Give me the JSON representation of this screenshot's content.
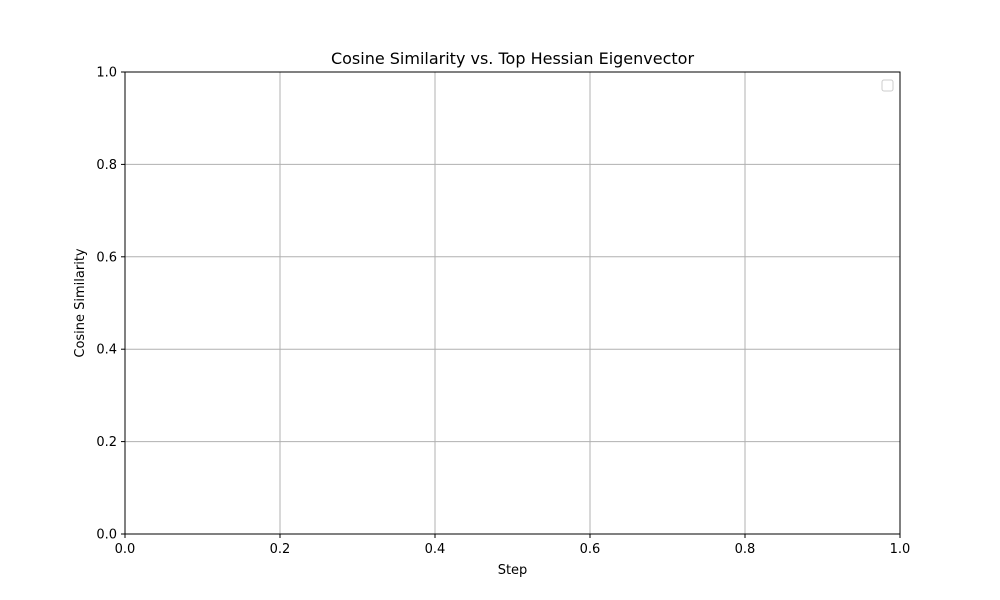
{
  "chart_data": {
    "type": "line",
    "title": "Cosine Similarity vs. Top Hessian Eigenvector",
    "xlabel": "Step",
    "ylabel": "Cosine Similarity",
    "xlim": [
      0.0,
      1.0
    ],
    "ylim": [
      0.0,
      1.0
    ],
    "xticks": [
      "0.0",
      "0.2",
      "0.4",
      "0.6",
      "0.8",
      "1.0"
    ],
    "yticks": [
      "0.0",
      "0.2",
      "0.4",
      "0.6",
      "0.8",
      "1.0"
    ],
    "grid": true,
    "legend": {
      "position": "upper right",
      "entries": []
    },
    "series": []
  },
  "colors": {
    "grid": "#b0b0b0",
    "axes": "#000000",
    "background": "#ffffff"
  }
}
